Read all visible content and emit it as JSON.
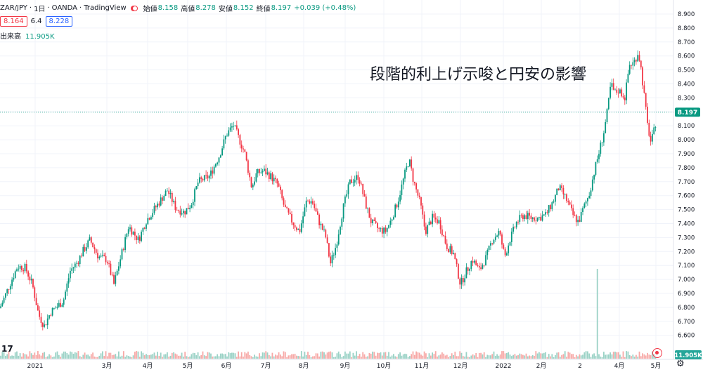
{
  "legend": {
    "symbol": "ZAR/JPY",
    "interval": "1日",
    "broker": "OANDA",
    "platform": "TradingView",
    "open_label": "始値",
    "open_value": "8.158",
    "high_label": "高値",
    "high_value": "8.278",
    "low_label": "安値",
    "low_value": "8.152",
    "close_label": "終値",
    "close_value": "8.197",
    "change": "+0.039 (+0.48%)"
  },
  "quote": {
    "sell": "8.164",
    "spread": "6.4",
    "buy": "8.228"
  },
  "volume": {
    "label": "出来高",
    "value": "11.905K"
  },
  "annotation": "段階的利上げ示唆と円安の影響",
  "colors": {
    "up": "#089981",
    "down": "#f23645",
    "up_volume": "#9bd2c6",
    "down_volume": "#f7a9a7",
    "grid": "#f0f3fa"
  },
  "chart_data": {
    "type": "candlestick",
    "y_axis": {
      "ylim": [
        6.52,
        8.95
      ],
      "ticks": [
        "6.600",
        "6.700",
        "6.800",
        "6.900",
        "7.000",
        "7.100",
        "7.200",
        "7.300",
        "7.400",
        "7.500",
        "7.600",
        "7.700",
        "7.800",
        "7.900",
        "8.000",
        "8.100",
        "8.200",
        "8.300",
        "8.400",
        "8.500",
        "8.600",
        "8.700",
        "8.800",
        "8.900"
      ]
    },
    "x_axis": {
      "ticks": [
        "2021",
        "3月",
        "4月",
        "5月",
        "6月",
        "7月",
        "8月",
        "9月",
        "10月",
        "11月",
        "12月",
        "2022",
        "2月",
        "2",
        "4月",
        "5月"
      ]
    },
    "last_price_label": "8.197",
    "volume_label": "11.905K",
    "close_path": [
      [
        0,
        6.83
      ],
      [
        18,
        7.05
      ],
      [
        25,
        7.13
      ],
      [
        36,
        7.12
      ],
      [
        46,
        7.0
      ],
      [
        55,
        6.78
      ],
      [
        63,
        6.7
      ],
      [
        72,
        6.8
      ],
      [
        90,
        6.88
      ],
      [
        100,
        7.1
      ],
      [
        110,
        7.16
      ],
      [
        118,
        7.24
      ],
      [
        128,
        7.32
      ],
      [
        140,
        7.2
      ],
      [
        152,
        7.18
      ],
      [
        162,
        7.0
      ],
      [
        172,
        7.2
      ],
      [
        183,
        7.42
      ],
      [
        197,
        7.32
      ],
      [
        208,
        7.46
      ],
      [
        222,
        7.56
      ],
      [
        230,
        7.62
      ],
      [
        238,
        7.68
      ],
      [
        250,
        7.55
      ],
      [
        262,
        7.52
      ],
      [
        272,
        7.58
      ],
      [
        282,
        7.74
      ],
      [
        298,
        7.78
      ],
      [
        312,
        7.93
      ],
      [
        322,
        8.08
      ],
      [
        332,
        8.15
      ],
      [
        340,
        8.05
      ],
      [
        348,
        7.95
      ],
      [
        358,
        7.7
      ],
      [
        365,
        7.8
      ],
      [
        375,
        7.82
      ],
      [
        385,
        7.78
      ],
      [
        395,
        7.72
      ],
      [
        405,
        7.55
      ],
      [
        416,
        7.45
      ],
      [
        426,
        7.38
      ],
      [
        436,
        7.6
      ],
      [
        444,
        7.6
      ],
      [
        454,
        7.45
      ],
      [
        463,
        7.35
      ],
      [
        470,
        7.15
      ],
      [
        478,
        7.28
      ],
      [
        488,
        7.55
      ],
      [
        498,
        7.74
      ],
      [
        510,
        7.78
      ],
      [
        520,
        7.58
      ],
      [
        528,
        7.45
      ],
      [
        538,
        7.4
      ],
      [
        548,
        7.38
      ],
      [
        556,
        7.46
      ],
      [
        566,
        7.6
      ],
      [
        576,
        7.8
      ],
      [
        582,
        7.9
      ],
      [
        588,
        7.75
      ],
      [
        598,
        7.58
      ],
      [
        605,
        7.38
      ],
      [
        615,
        7.48
      ],
      [
        625,
        7.45
      ],
      [
        635,
        7.28
      ],
      [
        645,
        7.22
      ],
      [
        655,
        7.0
      ],
      [
        662,
        7.08
      ],
      [
        672,
        7.18
      ],
      [
        682,
        7.1
      ],
      [
        692,
        7.2
      ],
      [
        700,
        7.32
      ],
      [
        710,
        7.38
      ],
      [
        718,
        7.2
      ],
      [
        725,
        7.32
      ],
      [
        735,
        7.45
      ],
      [
        745,
        7.5
      ],
      [
        755,
        7.48
      ],
      [
        766,
        7.48
      ],
      [
        776,
        7.5
      ],
      [
        787,
        7.6
      ],
      [
        795,
        7.7
      ],
      [
        805,
        7.62
      ],
      [
        815,
        7.5
      ],
      [
        823,
        7.45
      ],
      [
        830,
        7.55
      ],
      [
        838,
        7.65
      ],
      [
        847,
        7.85
      ],
      [
        852,
        7.95
      ],
      [
        859,
        8.1
      ],
      [
        864,
        8.25
      ],
      [
        869,
        8.45
      ],
      [
        874,
        8.38
      ],
      [
        880,
        8.4
      ],
      [
        889,
        8.35
      ],
      [
        895,
        8.58
      ],
      [
        902,
        8.6
      ],
      [
        908,
        8.68
      ],
      [
        912,
        8.55
      ],
      [
        916,
        8.38
      ],
      [
        921,
        8.15
      ],
      [
        926,
        8.02
      ],
      [
        930,
        8.1
      ],
      [
        934,
        8.2
      ]
    ]
  }
}
